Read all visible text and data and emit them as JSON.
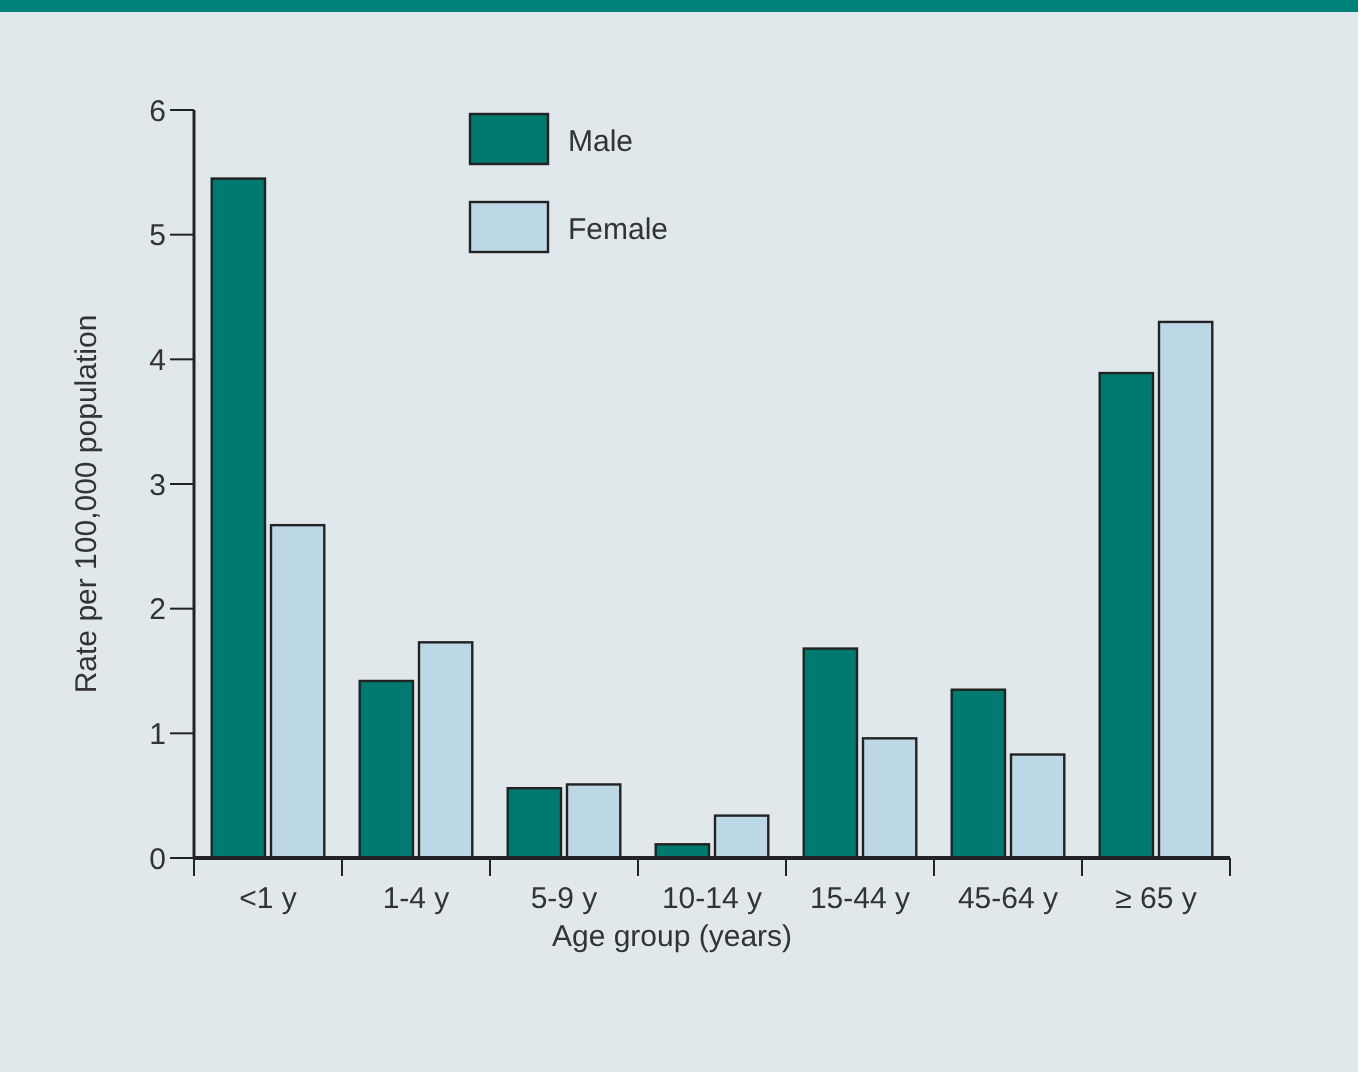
{
  "chart_data": {
    "type": "bar",
    "xlabel": "Age group (years)",
    "ylabel": "Rate per 100,000 population",
    "categories": [
      "<1 y",
      "1-4 y",
      "5-9 y",
      "10-14 y",
      "15-44 y",
      "45-64 y",
      "≥ 65 y"
    ],
    "series": [
      {
        "name": "Male",
        "color": "#007a6e",
        "values": [
          5.45,
          1.42,
          0.56,
          0.11,
          1.68,
          1.35,
          3.89
        ]
      },
      {
        "name": "Female",
        "color": "#bcd8e6",
        "values": [
          2.67,
          1.73,
          0.59,
          0.34,
          0.96,
          0.83,
          4.3
        ]
      }
    ],
    "ylim": [
      0,
      6
    ],
    "yticks": [
      0,
      1,
      2,
      3,
      4,
      5,
      6
    ],
    "grid": false,
    "legend": "top"
  }
}
